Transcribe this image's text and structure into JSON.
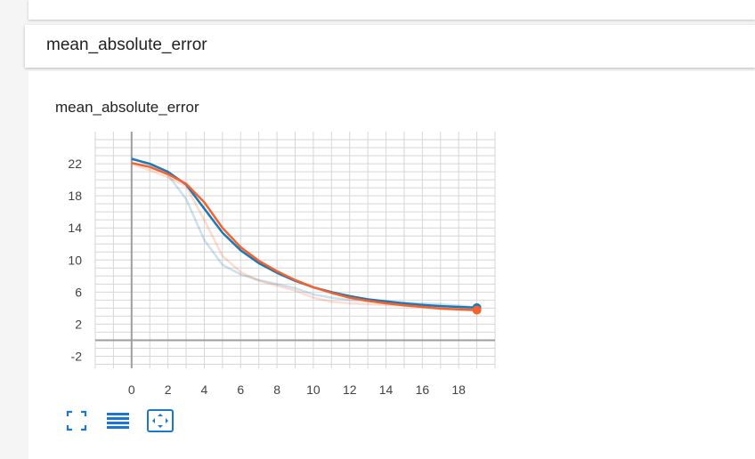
{
  "section": {
    "title": "mean_absolute_error"
  },
  "chart_data": {
    "type": "line",
    "title": "mean_absolute_error",
    "xlabel": "",
    "ylabel": "",
    "xlim": [
      -2,
      20
    ],
    "ylim": [
      -3.5,
      26
    ],
    "x_ticks": [
      0,
      2,
      4,
      6,
      8,
      10,
      12,
      14,
      16,
      18
    ],
    "y_ticks": [
      -2,
      2,
      6,
      10,
      14,
      18,
      22
    ],
    "grid": true,
    "series": [
      {
        "color": "#1f77b4",
        "x": [
          0,
          1,
          2,
          3,
          4,
          5,
          6,
          7,
          8,
          9,
          10,
          11,
          12,
          13,
          14,
          15,
          16,
          17,
          18,
          19
        ],
        "values": [
          22.6,
          22.0,
          21.0,
          19.4,
          16.4,
          13.4,
          11.2,
          9.6,
          8.4,
          7.4,
          6.6,
          6.0,
          5.5,
          5.1,
          4.85,
          4.6,
          4.4,
          4.25,
          4.15,
          4.05
        ],
        "raw_values": [
          22.8,
          21.8,
          20.6,
          17.6,
          12.5,
          9.4,
          8.2,
          7.5,
          7.0,
          6.5,
          5.7,
          5.3,
          5.0,
          4.9,
          4.8,
          4.7,
          4.6,
          4.5,
          4.3,
          4.1
        ]
      },
      {
        "color": "#f4622e",
        "x": [
          0,
          1,
          2,
          3,
          4,
          5,
          6,
          7,
          8,
          9,
          10,
          11,
          12,
          13,
          14,
          15,
          16,
          17,
          18,
          19
        ],
        "values": [
          22.1,
          21.6,
          20.7,
          19.5,
          17.2,
          14.0,
          11.6,
          9.9,
          8.6,
          7.5,
          6.6,
          5.9,
          5.3,
          4.9,
          4.6,
          4.35,
          4.15,
          3.95,
          3.85,
          3.75
        ],
        "raw_values": [
          22.0,
          21.2,
          20.3,
          19.2,
          15.0,
          10.5,
          8.5,
          7.4,
          6.8,
          6.2,
          5.3,
          4.8,
          4.6,
          4.5,
          4.4,
          4.3,
          4.1,
          3.9,
          3.8,
          3.7
        ]
      }
    ]
  },
  "toolbar": {
    "icons": [
      "fullscreen-icon",
      "legend-list-icon",
      "fit-domain-icon"
    ],
    "accent_color": "#1976d2"
  }
}
